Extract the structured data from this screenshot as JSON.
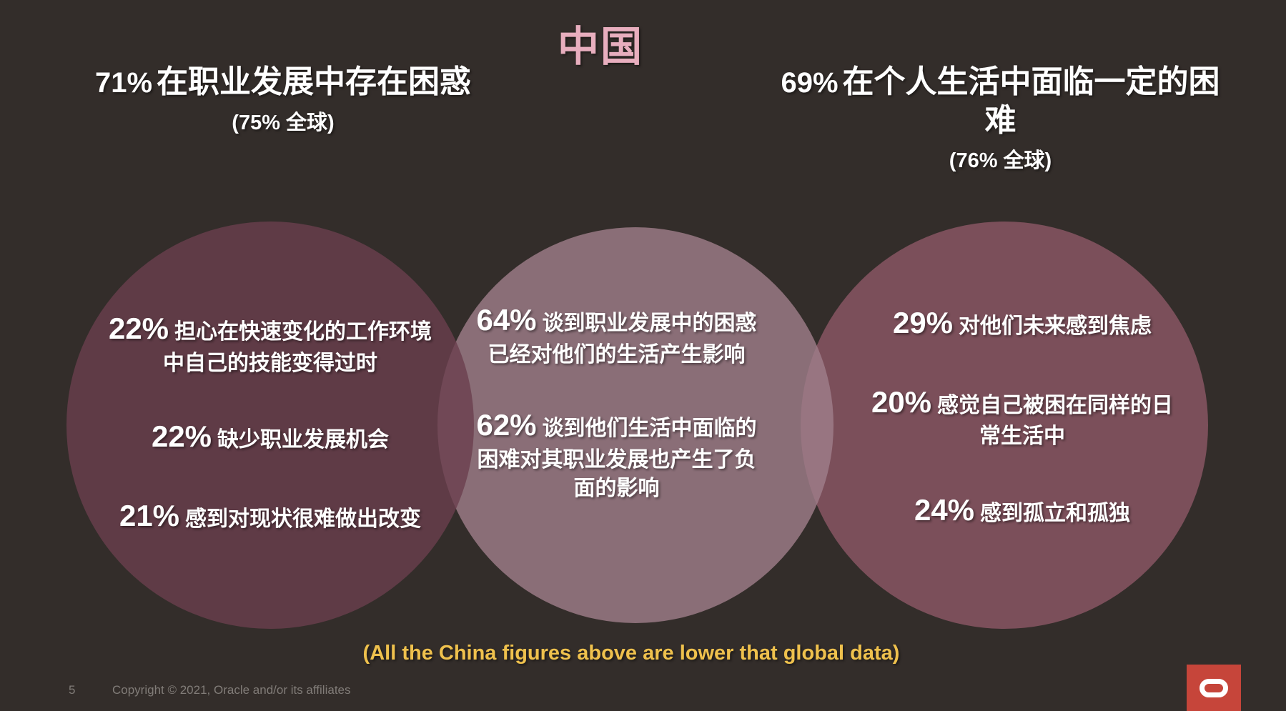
{
  "title": "中国",
  "headers": {
    "left": {
      "stat": "71%",
      "text": "在职业发展中存在困惑",
      "global_note": "(75% 全球)"
    },
    "right": {
      "stat": "69%",
      "text": "在个人生活中面临一定的困难",
      "global_note": "(76% 全球)"
    }
  },
  "circles": {
    "left": {
      "items": [
        {
          "stat": "22%",
          "text": "担心在快速变化的工作环境中自己的技能变得过时"
        },
        {
          "stat": "22%",
          "text": "缺少职业发展机会"
        },
        {
          "stat": "21%",
          "text": "感到对现状很难做出改变"
        }
      ]
    },
    "middle": {
      "items": [
        {
          "stat": "64%",
          "text": "谈到职业发展中的困惑已经对他们的生活产生影响"
        },
        {
          "stat": "62%",
          "text": "谈到他们生活中面临的困难对其职业发展也产生了负面的影响"
        }
      ]
    },
    "right": {
      "items": [
        {
          "stat": "29%",
          "text": "对他们未来感到焦虑"
        },
        {
          "stat": "20%",
          "text": "感觉自己被困在同样的日常生活中"
        },
        {
          "stat": "24%",
          "text": "感到孤立和孤独"
        }
      ]
    }
  },
  "footnote": "(All the China figures above are lower that global data)",
  "footer": {
    "page_number": "5",
    "copyright": "Copyright © 2021, Oracle and/or its affiliates"
  },
  "logo": {
    "name": "oracle-logo"
  },
  "colors": {
    "background": "#332D2A",
    "title_pink": "#E8AEBE",
    "footnote_yellow": "#EFC14D",
    "circle_left": "#5F3B47",
    "circle_middle": "#8A6E78",
    "circle_right": "#7B4F5B",
    "oracle_red": "#C6453A",
    "footer_gray": "#817C78",
    "text_white": "#FFFFFF"
  },
  "chart_data": {
    "type": "table",
    "title": "中国",
    "columns": [
      "group",
      "stat",
      "label"
    ],
    "rows": [
      [
        "career-header",
        "71%",
        "在职业发展中存在困惑 (75% 全球)"
      ],
      [
        "personal-header",
        "69%",
        "在个人生活中面临一定的困难 (76% 全球)"
      ],
      [
        "career",
        "22%",
        "担心在快速变化的工作环境中自己的技能变得过时"
      ],
      [
        "career",
        "22%",
        "缺少职业发展机会"
      ],
      [
        "career",
        "21%",
        "感到对现状很难做出改变"
      ],
      [
        "overlap",
        "64%",
        "谈到职业发展中的困惑已经对他们的生活产生影响"
      ],
      [
        "overlap",
        "62%",
        "谈到他们生活中面临的困难对其职业发展也产生了负面的影响"
      ],
      [
        "personal",
        "29%",
        "对他们未来感到焦虑"
      ],
      [
        "personal",
        "20%",
        "感觉自己被困在同样的日常生活中"
      ],
      [
        "personal",
        "24%",
        "感到孤立和孤独"
      ]
    ],
    "annotation": "(All the China figures above are lower that global data)"
  }
}
